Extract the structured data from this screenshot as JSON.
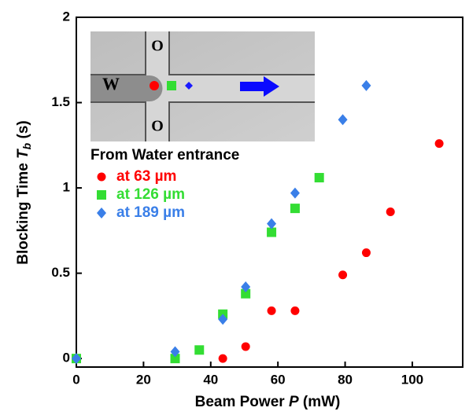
{
  "chart_data": {
    "type": "scatter",
    "xlabel": {
      "text": "Beam Power ",
      "var": "P",
      "unit": " (mW)"
    },
    "ylabel": {
      "text": "Blocking  Time ",
      "var": "T",
      "sub": "b",
      "unit": " (s)"
    },
    "legend_title": "From Water entrance",
    "xlim": [
      0,
      115
    ],
    "ylim": [
      -0.05,
      2
    ],
    "xticks": [
      0,
      20,
      40,
      60,
      80,
      100
    ],
    "yticks": [
      0,
      0.5,
      1,
      1.5,
      2
    ],
    "series": [
      {
        "name": "at 63 µm",
        "color": "#ff0000",
        "marker": "circle",
        "x": [
          43.6,
          50.4,
          58.1,
          65.1,
          79.3,
          86.3,
          93.5,
          108
        ],
        "values": [
          0,
          0.07,
          0.28,
          0.28,
          0.49,
          0.62,
          0.86,
          1.26
        ]
      },
      {
        "name": "at 126 µm",
        "color": "#33dd33",
        "marker": "square",
        "x": [
          0,
          29.4,
          36.6,
          43.6,
          50.4,
          58.1,
          65.1,
          72.3
        ],
        "values": [
          0,
          0,
          0.05,
          0.26,
          0.38,
          0.74,
          0.88,
          1.06
        ]
      },
      {
        "name": "at 189 µm",
        "color": "#3a7fe8",
        "marker": "diamond",
        "x": [
          0,
          29.4,
          43.6,
          50.4,
          58.1,
          65.1,
          79.3,
          86.3
        ],
        "values": [
          0,
          0.04,
          0.23,
          0.42,
          0.79,
          0.97,
          1.4,
          1.6
        ]
      }
    ],
    "inset": {
      "labels": [
        "W",
        "O",
        "O"
      ]
    }
  }
}
